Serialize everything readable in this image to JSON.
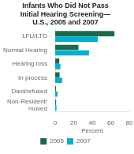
{
  "chart_data": {
    "type": "bar",
    "orientation": "horizontal",
    "title": "Infants Who Did Not Pass\nInitial Hearing Screening—\nU.S., 2005 and 2007",
    "categories": [
      "Non-Resident/\nmoved",
      "Died/refused",
      "In process",
      "Hearing loss",
      "Normal Hearing",
      "LFU/LTD"
    ],
    "series": [
      {
        "name": "2005",
        "color": "#1b6b4a",
        "values": [
          1.0,
          0.9,
          4.7,
          4.4,
          25.1,
          64.0
        ]
      },
      {
        "name": "2007",
        "color": "#00b0d0",
        "values": [
          1.4,
          2.6,
          7.6,
          5.6,
          36.5,
          46.1
        ]
      }
    ],
    "xlabel": "Percent",
    "xlim": [
      0,
      80
    ],
    "xticks": [
      0,
      20,
      40,
      60,
      80
    ],
    "grid": false,
    "legend": "bottom"
  }
}
